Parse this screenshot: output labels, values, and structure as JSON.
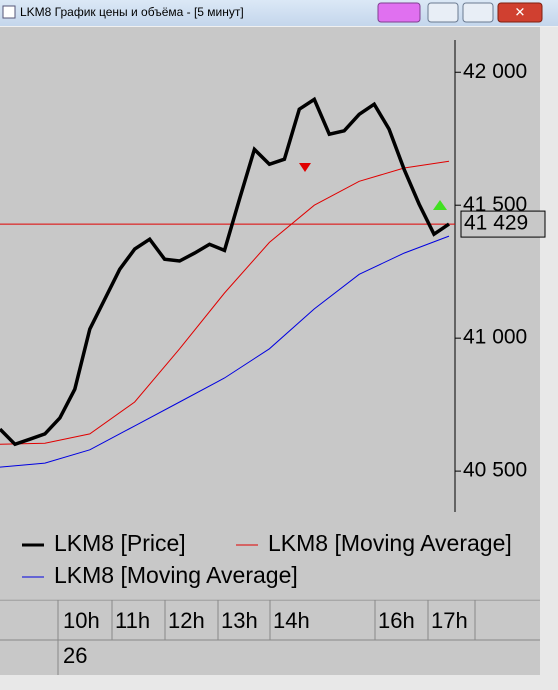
{
  "window": {
    "title": "LKM8 График цены и объёма - [5 минут]"
  },
  "chart_data": {
    "type": "line",
    "ylim": [
      40350,
      42110
    ],
    "yticks": [
      {
        "value": 40500,
        "label": "40 500"
      },
      {
        "value": 41000,
        "label": "41 000"
      },
      {
        "value": 41500,
        "label": "41 500"
      },
      {
        "value": 42000,
        "label": "42 000"
      }
    ],
    "current_price": {
      "value": 41429,
      "label": "41 429"
    },
    "series": [
      {
        "name": "LKM8 [Price]",
        "color": "#000000",
        "values": [
          40658,
          40601,
          40620,
          40640,
          40700,
          40808,
          41034,
          41147,
          41259,
          41335,
          41372,
          41297,
          41290,
          41320,
          41353,
          41330,
          41523,
          41710,
          41654,
          41673,
          41861,
          41898,
          41767,
          41780,
          41842,
          41880,
          41786,
          41635,
          41504,
          41391,
          41429
        ]
      },
      {
        "name": "LKM8 [Moving Average]",
        "color": "#e00000",
        "values": [
          40601,
          40605,
          40640,
          40760,
          40960,
          41170,
          41360,
          41500,
          41590,
          41640,
          41665
        ]
      },
      {
        "name": "LKM8 [Moving Average]",
        "color": "#0000e0",
        "values": [
          40515,
          40530,
          40580,
          40670,
          40760,
          40850,
          40960,
          41110,
          41240,
          41320,
          41384
        ]
      }
    ]
  },
  "time_axis": {
    "labels": [
      "10h",
      "11h",
      "12h",
      "13h",
      "14h",
      "16h",
      "17h"
    ],
    "day": "26"
  }
}
